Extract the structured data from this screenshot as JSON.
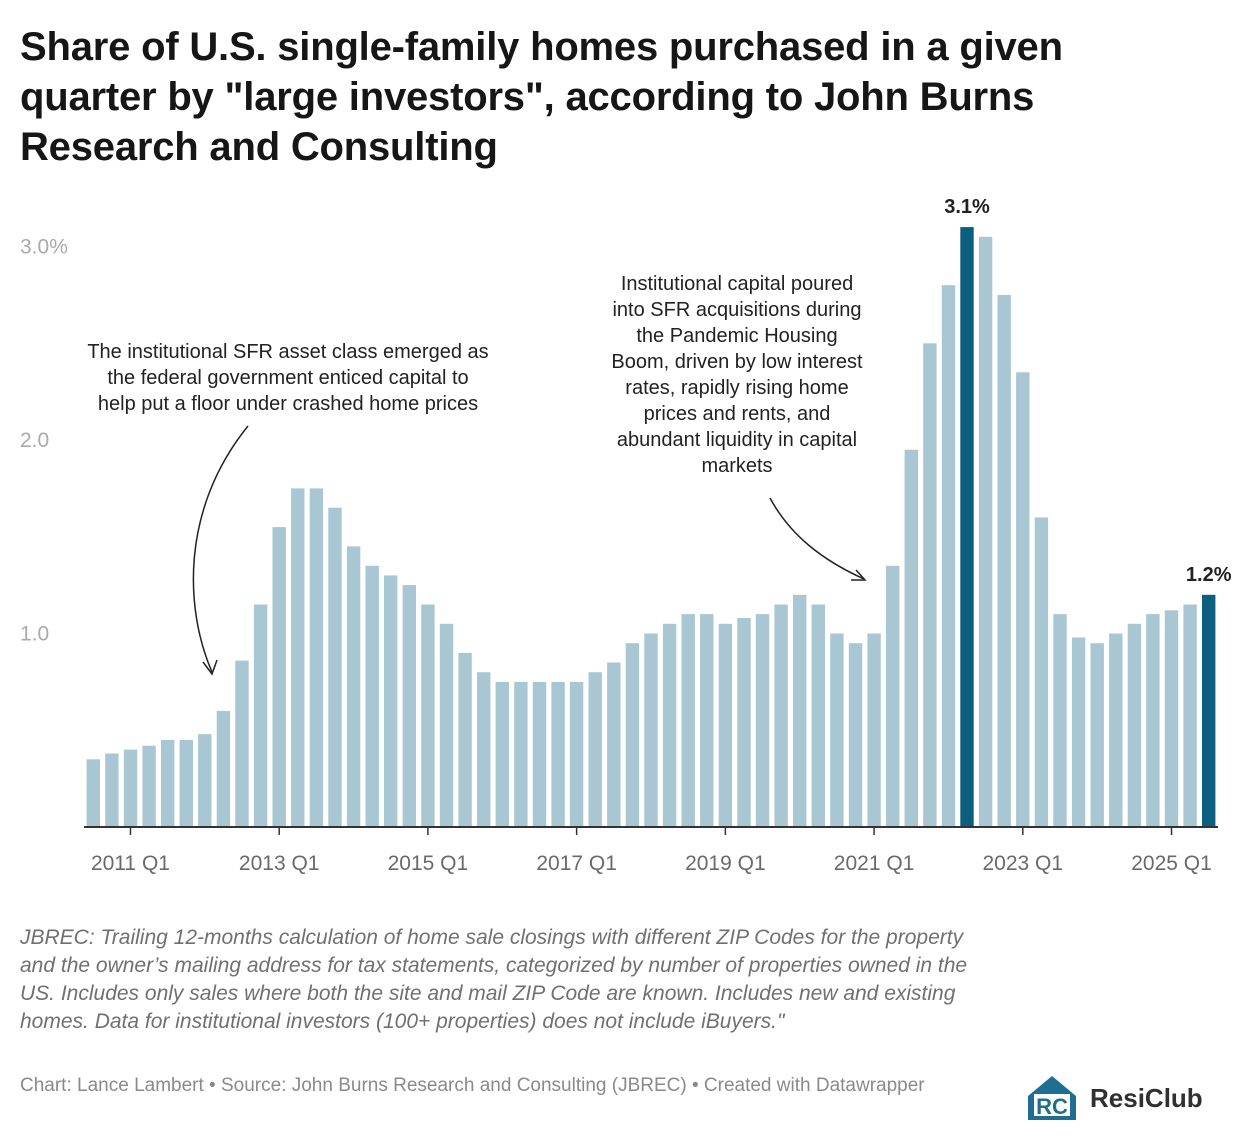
{
  "title": "Share of U.S. single-family homes purchased in a given quarter by \"large investors\", according to John Burns Research and Consulting",
  "chart_data": {
    "type": "bar",
    "title": "Share of U.S. single-family homes purchased in a given quarter by \"large investors\", according to John Burns Research and Consulting",
    "xlabel": "",
    "ylabel": "",
    "ylim": [
      0,
      3.2
    ],
    "yticks": [
      {
        "value": 1.0,
        "label": "1.0"
      },
      {
        "value": 2.0,
        "label": "2.0"
      },
      {
        "value": 3.0,
        "label": "3.0%"
      }
    ],
    "xticks": [
      {
        "index": 2,
        "label": "2011 Q1"
      },
      {
        "index": 10,
        "label": "2013 Q1"
      },
      {
        "index": 18,
        "label": "2015 Q1"
      },
      {
        "index": 26,
        "label": "2017 Q1"
      },
      {
        "index": 34,
        "label": "2019 Q1"
      },
      {
        "index": 42,
        "label": "2021 Q1"
      },
      {
        "index": 50,
        "label": "2023 Q1"
      },
      {
        "index": 58,
        "label": "2025 Q1"
      }
    ],
    "categories": [
      "2010 Q3",
      "2010 Q4",
      "2011 Q1",
      "2011 Q2",
      "2011 Q3",
      "2011 Q4",
      "2012 Q1",
      "2012 Q2",
      "2012 Q3",
      "2012 Q4",
      "2013 Q1",
      "2013 Q2",
      "2013 Q3",
      "2013 Q4",
      "2014 Q1",
      "2014 Q2",
      "2014 Q3",
      "2014 Q4",
      "2015 Q1",
      "2015 Q2",
      "2015 Q3",
      "2015 Q4",
      "2016 Q1",
      "2016 Q2",
      "2016 Q3",
      "2016 Q4",
      "2017 Q1",
      "2017 Q2",
      "2017 Q3",
      "2017 Q4",
      "2018 Q1",
      "2018 Q2",
      "2018 Q3",
      "2018 Q4",
      "2019 Q1",
      "2019 Q2",
      "2019 Q3",
      "2019 Q4",
      "2020 Q1",
      "2020 Q2",
      "2020 Q3",
      "2020 Q4",
      "2021 Q1",
      "2021 Q2",
      "2021 Q3",
      "2021 Q4",
      "2022 Q1",
      "2022 Q2",
      "2022 Q3",
      "2022 Q4",
      "2023 Q1",
      "2023 Q2",
      "2023 Q3",
      "2023 Q4",
      "2024 Q1",
      "2024 Q2",
      "2024 Q3",
      "2024 Q4",
      "2025 Q1",
      "2025 Q2",
      "2025 Q3"
    ],
    "values": [
      0.35,
      0.38,
      0.4,
      0.42,
      0.45,
      0.45,
      0.48,
      0.6,
      0.86,
      1.15,
      1.55,
      1.75,
      1.75,
      1.65,
      1.45,
      1.35,
      1.3,
      1.25,
      1.15,
      1.05,
      0.9,
      0.8,
      0.75,
      0.75,
      0.75,
      0.75,
      0.75,
      0.8,
      0.85,
      0.95,
      1.0,
      1.05,
      1.1,
      1.1,
      1.05,
      1.08,
      1.1,
      1.15,
      1.2,
      1.15,
      1.0,
      0.95,
      1.0,
      1.35,
      1.95,
      2.5,
      2.8,
      3.1,
      3.05,
      2.75,
      2.35,
      1.6,
      1.1,
      0.98,
      0.95,
      1.0,
      1.05,
      1.1,
      1.12,
      1.15,
      1.2
    ],
    "highlight": [
      {
        "index": 47,
        "label": "3.1%"
      },
      {
        "index": 60,
        "label": "1.2%"
      }
    ],
    "colors": {
      "bar": "#a9c7d2",
      "highlight": "#0c5f7e",
      "axis": "#333333"
    },
    "annotations": [
      {
        "lines": [
          "The institutional SFR asset class emerged as",
          "the federal government enticed capital to",
          "help put a floor under crashed home prices"
        ]
      },
      {
        "lines": [
          "Institutional capital poured",
          "into SFR acquisitions during",
          "the Pandemic Housing",
          "Boom, driven by low interest",
          "rates, rapidly rising home",
          "prices and rents, and",
          "abundant liquidity in capital",
          "markets"
        ]
      }
    ]
  },
  "notes": "JBREC: Trailing 12-months calculation of home sale closings with different ZIP Codes for the property and the owner’s mailing address for tax statements, categorized by number of properties owned in the US. Includes only sales where both the site and mail ZIP Code are known. Includes new and existing homes. Data for institutional investors (100+ properties) does not include iBuyers.\"",
  "footer": "Chart: Lance Lambert • Source: John Burns Research and Consulting (JBREC) • Created with Datawrapper",
  "brand": {
    "name": "ResiClub",
    "mark": "RC",
    "color": "#1e6f92",
    "icon": "resiclub-logo-icon"
  }
}
